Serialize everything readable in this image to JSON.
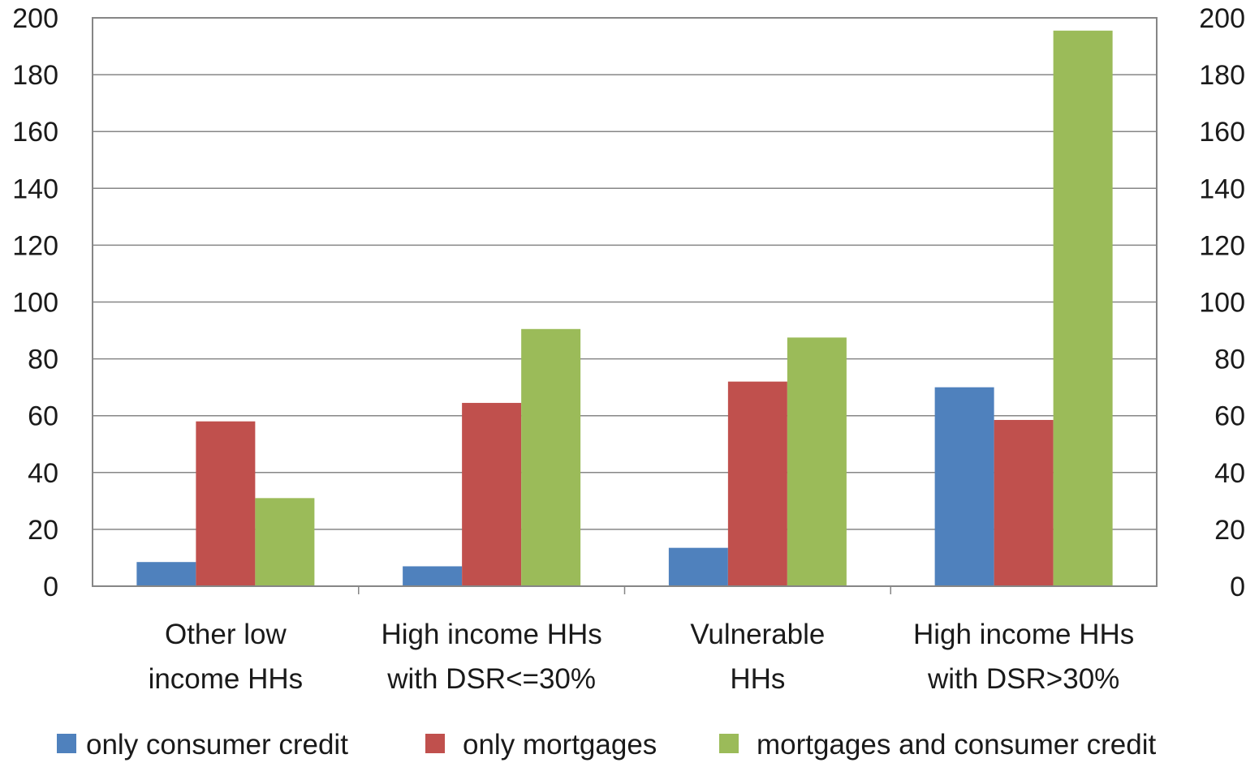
{
  "chart_data": {
    "type": "bar",
    "categories": [
      [
        "Other low",
        "income HHs"
      ],
      [
        "High income HHs",
        "with DSR<=30%"
      ],
      [
        "Vulnerable",
        "HHs"
      ],
      [
        "High income HHs",
        "with DSR>30%"
      ]
    ],
    "series": [
      {
        "name": "only consumer credit",
        "color": "#4f81bd",
        "values": [
          8.5,
          7,
          13.5,
          70
        ]
      },
      {
        "name": "only mortgages",
        "color": "#c0504d",
        "values": [
          58,
          64.5,
          72,
          58.5
        ]
      },
      {
        "name": "mortgages and consumer credit",
        "color": "#9bbb59",
        "values": [
          31,
          90.5,
          87.5,
          195.5
        ]
      }
    ],
    "ylim": [
      0,
      200
    ],
    "yticks": [
      "0",
      "20",
      "40",
      "60",
      "80",
      "100",
      "120",
      "140",
      "160",
      "180",
      "200"
    ],
    "secondary_axis": true,
    "grid": true,
    "legend_position": "bottom",
    "title": "",
    "xlabel": "",
    "ylabel": ""
  }
}
